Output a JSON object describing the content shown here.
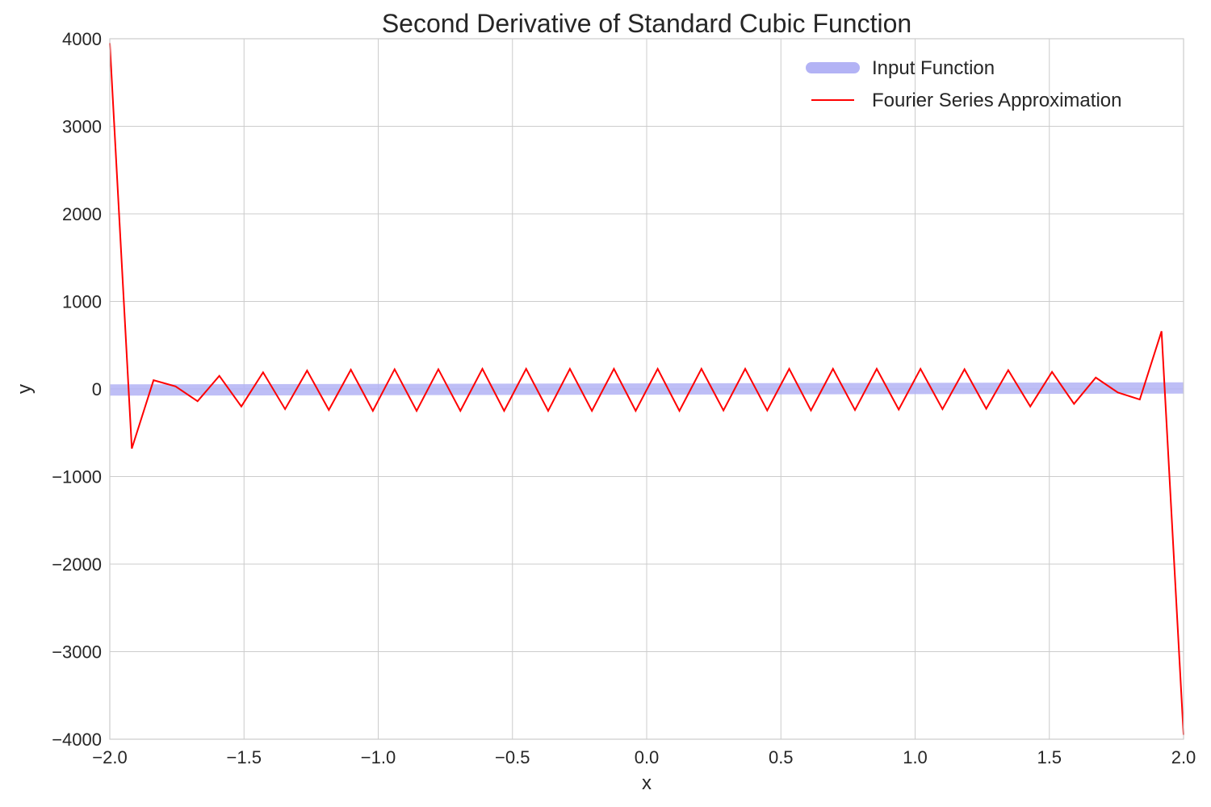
{
  "chart_data": {
    "type": "line",
    "title": "Second Derivative of Standard Cubic Function",
    "xlabel": "x",
    "ylabel": "y",
    "xlim": [
      -2.0,
      2.0
    ],
    "ylim": [
      -4000,
      4000
    ],
    "xticks": [
      -2.0,
      -1.5,
      -1.0,
      -0.5,
      0.0,
      0.5,
      1.0,
      1.5,
      2.0
    ],
    "xtick_labels": [
      "−2.0",
      "−1.5",
      "−1.0",
      "−0.5",
      "0.0",
      "0.5",
      "1.0",
      "1.5",
      "2.0"
    ],
    "yticks": [
      -4000,
      -3000,
      -2000,
      -1000,
      0,
      1000,
      2000,
      3000,
      4000
    ],
    "ytick_labels": [
      "−4000",
      "−3000",
      "−2000",
      "−1000",
      "0",
      "1000",
      "2000",
      "3000",
      "4000"
    ],
    "grid": true,
    "legend_position": "top-right",
    "series": [
      {
        "name": "Input Function",
        "color": "#b3b3f5",
        "style": "thick-band",
        "x": [
          -2.0,
          2.0
        ],
        "y": [
          -12,
          12
        ]
      },
      {
        "name": "Fourier Series Approximation",
        "color": "#ff0000",
        "style": "line",
        "x": [
          -2.0,
          -1.918,
          -1.837,
          -1.755,
          -1.673,
          -1.592,
          -1.51,
          -1.429,
          -1.347,
          -1.265,
          -1.184,
          -1.102,
          -1.02,
          -0.939,
          -0.857,
          -0.776,
          -0.694,
          -0.612,
          -0.531,
          -0.449,
          -0.367,
          -0.286,
          -0.204,
          -0.122,
          -0.041,
          0.041,
          0.122,
          0.204,
          0.286,
          0.367,
          0.449,
          0.531,
          0.612,
          0.694,
          0.776,
          0.857,
          0.939,
          1.02,
          1.102,
          1.184,
          1.265,
          1.347,
          1.429,
          1.51,
          1.592,
          1.673,
          1.755,
          1.837,
          1.918,
          2.0
        ],
        "y": [
          3950,
          -680,
          100,
          30,
          -140,
          150,
          -200,
          190,
          -230,
          210,
          -240,
          220,
          -250,
          225,
          -250,
          225,
          -250,
          230,
          -250,
          230,
          -250,
          230,
          -250,
          230,
          -250,
          230,
          -250,
          230,
          -245,
          230,
          -245,
          230,
          -245,
          230,
          -240,
          230,
          -235,
          230,
          -230,
          225,
          -225,
          215,
          -200,
          195,
          -170,
          130,
          -40,
          -120,
          660,
          -3950
        ]
      }
    ]
  }
}
